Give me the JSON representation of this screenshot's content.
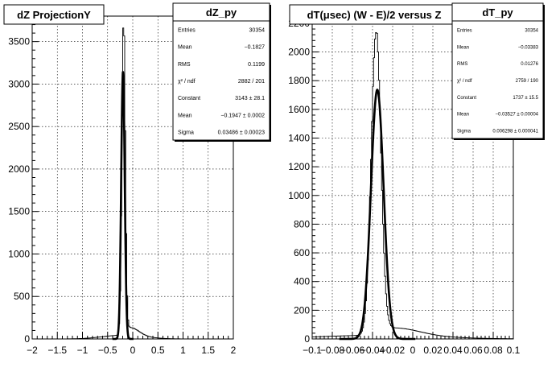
{
  "chart_data": [
    {
      "type": "histogram",
      "title": "dZ ProjectionY",
      "xlim": [
        -2,
        2
      ],
      "ylim": [
        0,
        3800
      ],
      "x_ticks": [
        -2,
        -1.5,
        -1,
        -0.5,
        0,
        0.5,
        1,
        1.5,
        2
      ],
      "x_tick_labels": [
        "−2",
        "−1.5",
        "−1",
        "−0.5",
        "0",
        "0.5",
        "1",
        "1.5",
        "2"
      ],
      "y_ticks": [
        0,
        500,
        1000,
        1500,
        2000,
        2500,
        3000,
        3500
      ],
      "y_tick_labels": [
        "0",
        "500",
        "1000",
        "1500",
        "2000",
        "2500",
        "3000",
        "3500"
      ],
      "grid": true,
      "series": [
        {
          "style": "histogram-step",
          "peak_x": -0.1827,
          "peak_y": 3700,
          "sigma": 0.034,
          "tail": "right"
        },
        {
          "style": "gaussian-fit",
          "constant": 3143,
          "mean": -0.1947,
          "sigma": 0.03486
        }
      ],
      "stats_box": {
        "title": "dZ_py",
        "rows": [
          {
            "label": "Entries",
            "value": "30354"
          },
          {
            "label": "Mean",
            "value": "−0.1827"
          },
          {
            "label": "RMS",
            "value": "0.1199"
          },
          {
            "label": "χ² / ndf",
            "value": "2882 / 201"
          },
          {
            "label": "Constant",
            "value": "3143 ± 28.1"
          },
          {
            "label": "Mean",
            "value": "−0.1947 ± 0.0002"
          },
          {
            "label": "Sigma",
            "value": "0.03486 ± 0.00023"
          }
        ]
      }
    },
    {
      "type": "histogram",
      "title": "dT(μsec) (W - E)/2 versus Z",
      "xlim": [
        -0.1,
        0.1
      ],
      "ylim": [
        0,
        2250
      ],
      "x_ticks": [
        -0.1,
        -0.08,
        -0.06,
        -0.04,
        -0.02,
        0,
        0.02,
        0.04,
        0.06,
        0.08,
        0.1
      ],
      "x_tick_labels": [
        "−0.1",
        "−0.08",
        "−0.06",
        "−0.04",
        "−0.02",
        "0",
        "0.02",
        "0.04",
        "0.06",
        "0.08",
        "0.1"
      ],
      "y_ticks": [
        0,
        200,
        400,
        600,
        800,
        1000,
        1200,
        1400,
        1600,
        1800,
        2000,
        2200
      ],
      "y_tick_labels": [
        "0",
        "200",
        "400",
        "600",
        "800",
        "1000",
        "1200",
        "1400",
        "1600",
        "1800",
        "2000",
        "2200"
      ],
      "grid": true,
      "series": [
        {
          "style": "histogram-step",
          "peak_x": -0.0365,
          "peak_y": 2110,
          "sigma": 0.0048,
          "tail": "right"
        },
        {
          "style": "gaussian-fit",
          "constant": 1737,
          "mean": -0.03527,
          "sigma": 0.006298
        }
      ],
      "stats_box": {
        "title": "dT_py",
        "rows": [
          {
            "label": "Entries",
            "value": "30354"
          },
          {
            "label": "Mean",
            "value": "−0.03383"
          },
          {
            "label": "RMS",
            "value": "0.01276"
          },
          {
            "label": "χ² / ndf",
            "value": "2759 / 190"
          },
          {
            "label": "Constant",
            "value": "1737 ± 15.5"
          },
          {
            "label": "Mean",
            "value": "−0.03527 ± 0.00004"
          },
          {
            "label": "Sigma",
            "value": "0.006298 ± 0.000041"
          }
        ]
      }
    }
  ]
}
